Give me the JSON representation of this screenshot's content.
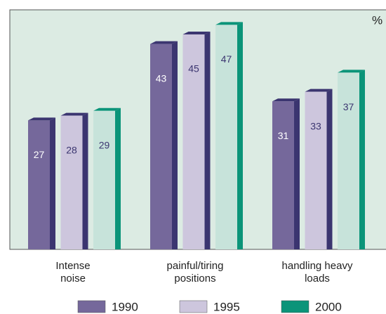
{
  "chart_data": {
    "type": "bar",
    "unit_label": "%",
    "categories": [
      "Intense noise",
      "painful/tiring positions",
      "handling heavy loads"
    ],
    "series": [
      {
        "name": "1990",
        "color": "#75689b",
        "face_color": "#75689b",
        "side_color": "#3b3570",
        "values": [
          27,
          43,
          31
        ]
      },
      {
        "name": "1995",
        "color": "#cdc6dd",
        "face_color": "#cdc6dd",
        "side_color": "#3b3570",
        "values": [
          28,
          45,
          33
        ]
      },
      {
        "name": "2000",
        "color": "#0b9479",
        "face_color": "#c7e3da",
        "side_color": "#0b9479",
        "values": [
          29,
          47,
          37
        ]
      }
    ],
    "ylim": [
      0,
      50
    ],
    "background": "#dcebe3"
  }
}
